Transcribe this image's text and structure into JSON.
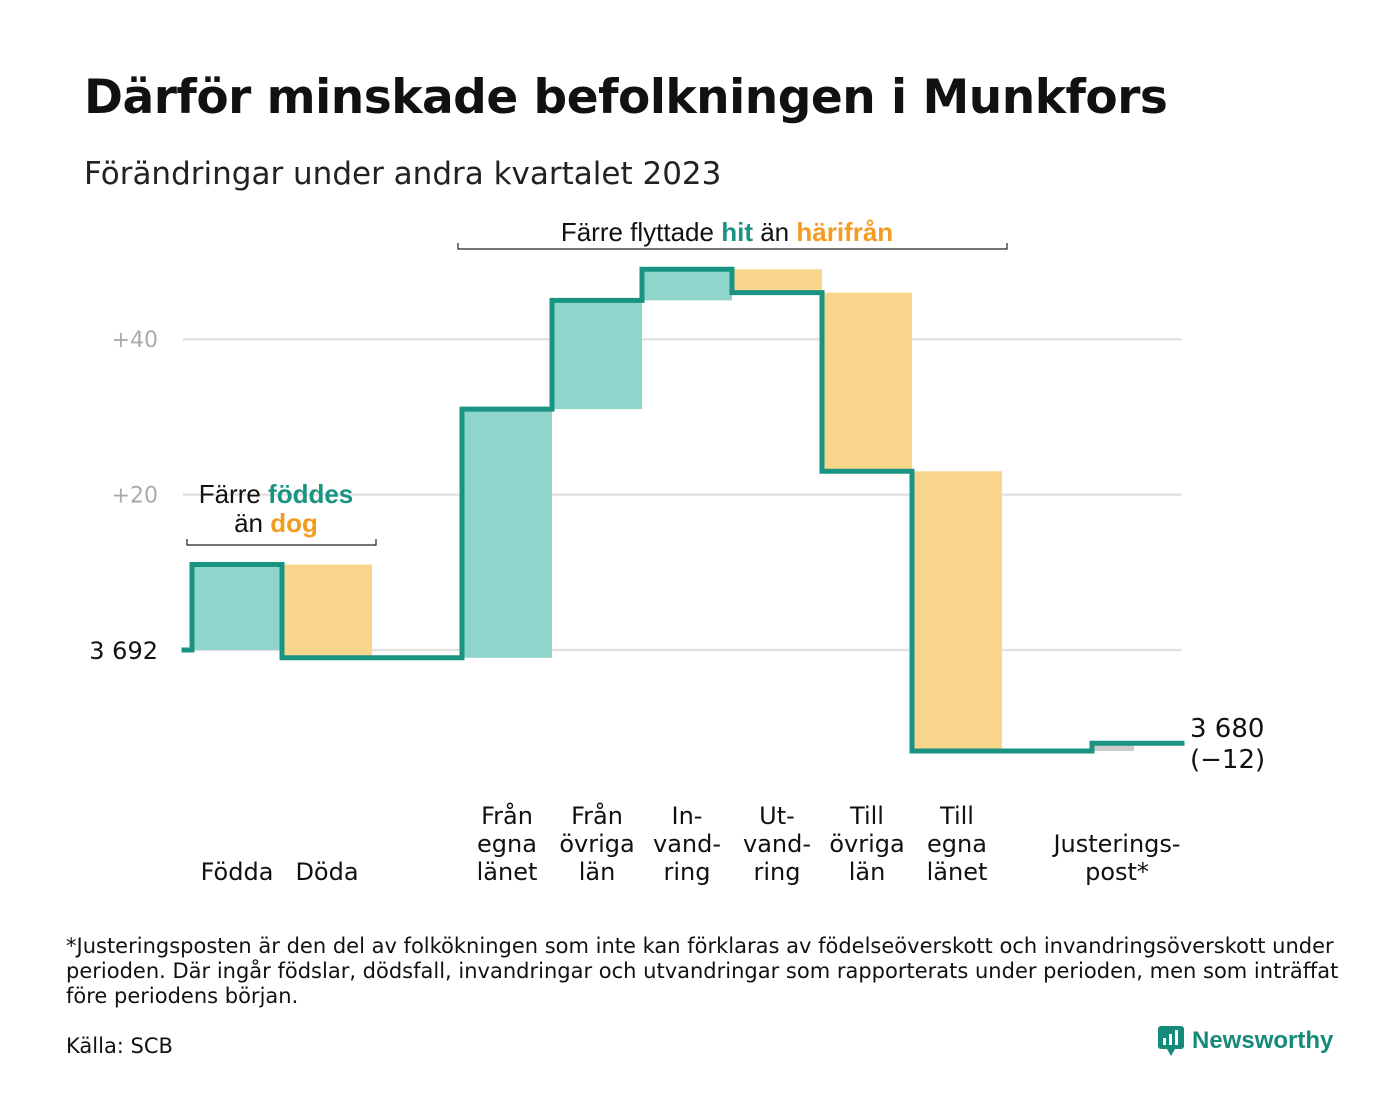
{
  "title": "Därför minskade befolkningen i Munkfors",
  "subtitle": "Förändringar under andra kvartalet 2023",
  "footnote": "*Justeringsposten är den del av folkökningen som inte kan förklaras av födelseöverskott och invandringsöverskott under perioden. Där ingår födslar, dödsfall, invandringar och utvandringar som rapporterats under perioden, men som inträffat före periodens början.",
  "source": "Källa: SCB",
  "brand": {
    "name": "Newsworthy",
    "icon": "newsworthy-logo-icon"
  },
  "colors": {
    "increase": "#8fd5cc",
    "decrease": "#fad58c",
    "adjustment": "#cccccc",
    "line": "#1a9482",
    "teal_text": "#1a9482",
    "orange_text": "#f39c1f",
    "grid": "#e2e2e2",
    "tick_text": "#aaaaaa"
  },
  "annotations": {
    "births": {
      "prefix": "Färre ",
      "highlight1": "föddes",
      "middle": "än ",
      "highlight2": "dog"
    },
    "migration": {
      "prefix": "Färre flyttade ",
      "highlight1": "hit",
      "middle": " än ",
      "highlight2": "härifrån"
    }
  },
  "chart_data": {
    "type": "waterfall",
    "baseline_value": 3692,
    "baseline_label": "3  692",
    "end_label": [
      "3 680",
      "(−12)"
    ],
    "y_ticks": [
      {
        "value": 20,
        "label": "+20"
      },
      {
        "value": 40,
        "label": "+40"
      }
    ],
    "ylim": [
      -13,
      49
    ],
    "grid": true,
    "steps": [
      {
        "label": [
          "Födda"
        ],
        "value": 11,
        "kind": "increase"
      },
      {
        "label": [
          "Döda"
        ],
        "value": -12,
        "kind": "decrease"
      },
      {
        "label": [],
        "value": 0,
        "kind": "gap"
      },
      {
        "label": [
          "Från",
          "egna",
          "länet"
        ],
        "value": 32,
        "kind": "increase"
      },
      {
        "label": [
          "Från",
          "övriga",
          "län"
        ],
        "value": 14,
        "kind": "increase"
      },
      {
        "label": [
          "In-",
          "vand-",
          "ring"
        ],
        "value": 4,
        "kind": "increase"
      },
      {
        "label": [
          "Ut-",
          "vand-",
          "ring"
        ],
        "value": -3,
        "kind": "decrease"
      },
      {
        "label": [
          "Till",
          "övriga",
          "län"
        ],
        "value": -23,
        "kind": "decrease"
      },
      {
        "label": [
          "Till",
          "egna",
          "länet"
        ],
        "value": -36,
        "kind": "decrease"
      },
      {
        "label": [],
        "value": 0,
        "kind": "gap"
      },
      {
        "label": [
          "Justerings-",
          "post*"
        ],
        "value": 1,
        "kind": "adjustment"
      }
    ]
  }
}
